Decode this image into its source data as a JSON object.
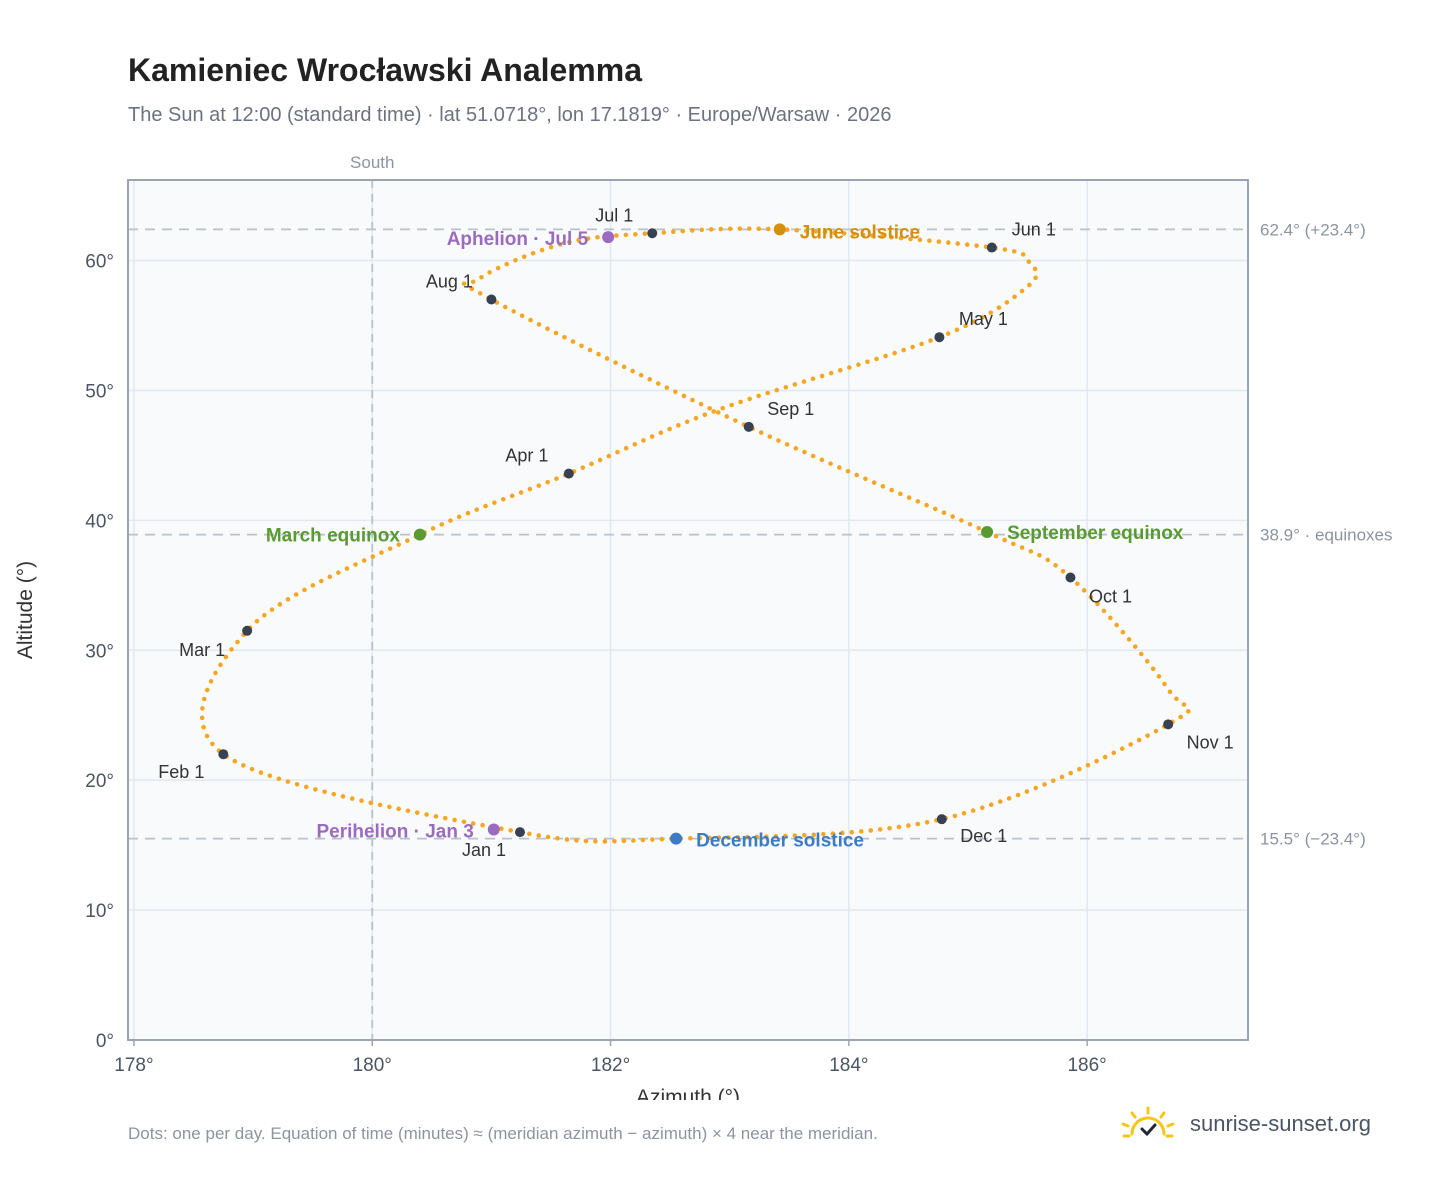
{
  "title": "Kamieniec Wrocławski Analemma",
  "subtitle": "The Sun at 12:00 (standard time) · lat 51.0718°, lon 17.1819° · Europe/Warsaw · 2026",
  "footnote": "Dots: one per day. Equation of time (minutes) ≈ (meridian azimuth − azimuth) × 4 near the meridian.",
  "brand": {
    "text": "sunrise-sunset.org",
    "icon": "sun-icon",
    "icon_color": "#f5c518"
  },
  "colors": {
    "path": "#f5a623",
    "month_marker": "#374151",
    "equinox": "#5a9a32",
    "june_solstice": "#d4900a",
    "december_solstice": "#3d7bc4",
    "apsis": "#9b6bbf",
    "plot_bg": "#f8fafc",
    "grid": "#e2e8f0",
    "reference_line": "#b8c2cc"
  },
  "chart_data": {
    "type": "scatter",
    "title": "Kamieniec Wrocławski Analemma",
    "xlabel": "Azimuth (°)",
    "ylabel": "Altitude (°)",
    "xlim": [
      177.95,
      187.35
    ],
    "ylim": [
      0,
      66.2
    ],
    "xticks": [
      {
        "value": 178,
        "label": "178°"
      },
      {
        "value": 180,
        "label": "180°"
      },
      {
        "value": 182,
        "label": "182°"
      },
      {
        "value": 184,
        "label": "184°"
      },
      {
        "value": 186,
        "label": "186°"
      }
    ],
    "yticks": [
      {
        "value": 0,
        "label": "0°"
      },
      {
        "value": 10,
        "label": "10°"
      },
      {
        "value": 20,
        "label": "20°"
      },
      {
        "value": 30,
        "label": "30°"
      },
      {
        "value": 40,
        "label": "40°"
      },
      {
        "value": 50,
        "label": "50°"
      },
      {
        "value": 60,
        "label": "60°"
      }
    ],
    "grid": true,
    "reference_lines": {
      "vertical": {
        "x": 180,
        "label": "South"
      },
      "horizontal": [
        {
          "y": 62.4,
          "label": "62.4° (+23.4°)"
        },
        {
          "y": 38.9,
          "label": "38.9° · equinoxes"
        },
        {
          "y": 15.5,
          "label": "15.5° (−23.4°)"
        }
      ]
    },
    "series": [
      {
        "kind": "daily",
        "points": [
          [
            181.24,
            16.0
          ],
          [
            178.75,
            22.0
          ],
          [
            178.95,
            31.5
          ],
          [
            180.4,
            38.9
          ],
          [
            181.65,
            43.6
          ],
          [
            182.9,
            48.5
          ],
          [
            184.76,
            54.1
          ],
          [
            185.5,
            58.0
          ],
          [
            185.52,
            59.8
          ],
          [
            185.2,
            61.0
          ],
          [
            183.42,
            62.4
          ],
          [
            182.35,
            62.1
          ],
          [
            181.6,
            61.3
          ],
          [
            180.9,
            58.6
          ],
          [
            181.0,
            57.0
          ],
          [
            183.16,
            47.2
          ],
          [
            185.16,
            39.1
          ],
          [
            185.86,
            35.6
          ],
          [
            186.68,
            27.0
          ],
          [
            186.68,
            24.3
          ],
          [
            184.78,
            17.0
          ],
          [
            182.55,
            15.5
          ],
          [
            181.24,
            16.0
          ]
        ]
      }
    ],
    "month_markers": [
      {
        "label": "Jan 1",
        "x": 181.24,
        "y": 16.0
      },
      {
        "label": "Feb 1",
        "x": 178.75,
        "y": 22.0
      },
      {
        "label": "Mar 1",
        "x": 178.95,
        "y": 31.5
      },
      {
        "label": "Apr 1",
        "x": 181.65,
        "y": 43.6
      },
      {
        "label": "May 1",
        "x": 184.76,
        "y": 54.1
      },
      {
        "label": "Jun 1",
        "x": 185.2,
        "y": 61.0
      },
      {
        "label": "Jul 1",
        "x": 182.35,
        "y": 62.1
      },
      {
        "label": "Aug 1",
        "x": 181.0,
        "y": 57.0
      },
      {
        "label": "Sep 1",
        "x": 183.16,
        "y": 47.2
      },
      {
        "label": "Oct 1",
        "x": 185.86,
        "y": 35.6
      },
      {
        "label": "Nov 1",
        "x": 186.68,
        "y": 24.3
      },
      {
        "label": "Dec 1",
        "x": 184.78,
        "y": 17.0
      }
    ],
    "events": [
      {
        "label": "March equinox",
        "x": 180.4,
        "y": 38.9,
        "color_key": "equinox"
      },
      {
        "label": "September equinox",
        "x": 185.16,
        "y": 39.1,
        "color_key": "equinox"
      },
      {
        "label": "June solstice",
        "x": 183.42,
        "y": 62.4,
        "color_key": "june_solstice"
      },
      {
        "label": "December solstice",
        "x": 182.55,
        "y": 15.5,
        "color_key": "december_solstice"
      },
      {
        "label": "Aphelion · Jul 5",
        "x": 181.98,
        "y": 61.8,
        "color_key": "apsis"
      },
      {
        "label": "Perihelion · Jan 3",
        "x": 181.02,
        "y": 16.2,
        "color_key": "apsis"
      }
    ]
  }
}
